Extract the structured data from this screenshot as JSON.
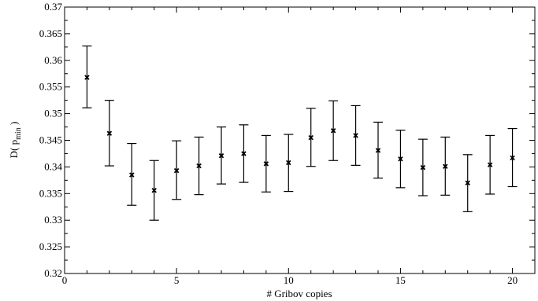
{
  "chart_data": {
    "type": "scatter",
    "xlabel": "# Gribov copies",
    "ylabel": "D( p",
    "ylabel_sub": "min",
    "ylabel_end": " )",
    "xlim": [
      0,
      21
    ],
    "ylim": [
      0.32,
      0.37
    ],
    "xticks": [
      0,
      5,
      10,
      15,
      20
    ],
    "xtick_labels": [
      "0",
      "5",
      "10",
      "15",
      "20"
    ],
    "yticks": [
      0.32,
      0.325,
      0.33,
      0.335,
      0.34,
      0.345,
      0.35,
      0.355,
      0.36,
      0.365,
      0.37
    ],
    "ytick_labels": [
      "0.32",
      "0.325",
      "0.33",
      "0.335",
      "0.34",
      "0.345",
      "0.35",
      "0.355",
      "0.36",
      "0.365",
      "0.37"
    ],
    "grid": false,
    "marker": "x",
    "x": [
      1,
      2,
      3,
      4,
      5,
      6,
      7,
      8,
      9,
      10,
      11,
      12,
      13,
      14,
      15,
      16,
      17,
      18,
      19,
      20
    ],
    "y": [
      0.3568,
      0.3463,
      0.3385,
      0.3356,
      0.3393,
      0.3402,
      0.3421,
      0.3425,
      0.3406,
      0.3408,
      0.3455,
      0.3468,
      0.3459,
      0.3431,
      0.3415,
      0.3399,
      0.3401,
      0.337,
      0.3404,
      0.3417
    ],
    "y_err_low": [
      0.3511,
      0.3402,
      0.3328,
      0.33,
      0.3339,
      0.3348,
      0.3368,
      0.3371,
      0.3353,
      0.3354,
      0.3401,
      0.3412,
      0.3403,
      0.3379,
      0.3361,
      0.3346,
      0.3347,
      0.3316,
      0.3349,
      0.3363
    ],
    "y_err_high": [
      0.3627,
      0.3525,
      0.3444,
      0.3412,
      0.3449,
      0.3456,
      0.3475,
      0.3479,
      0.3459,
      0.3461,
      0.351,
      0.3524,
      0.3515,
      0.3484,
      0.3469,
      0.3452,
      0.3456,
      0.3423,
      0.3459,
      0.3472
    ]
  }
}
